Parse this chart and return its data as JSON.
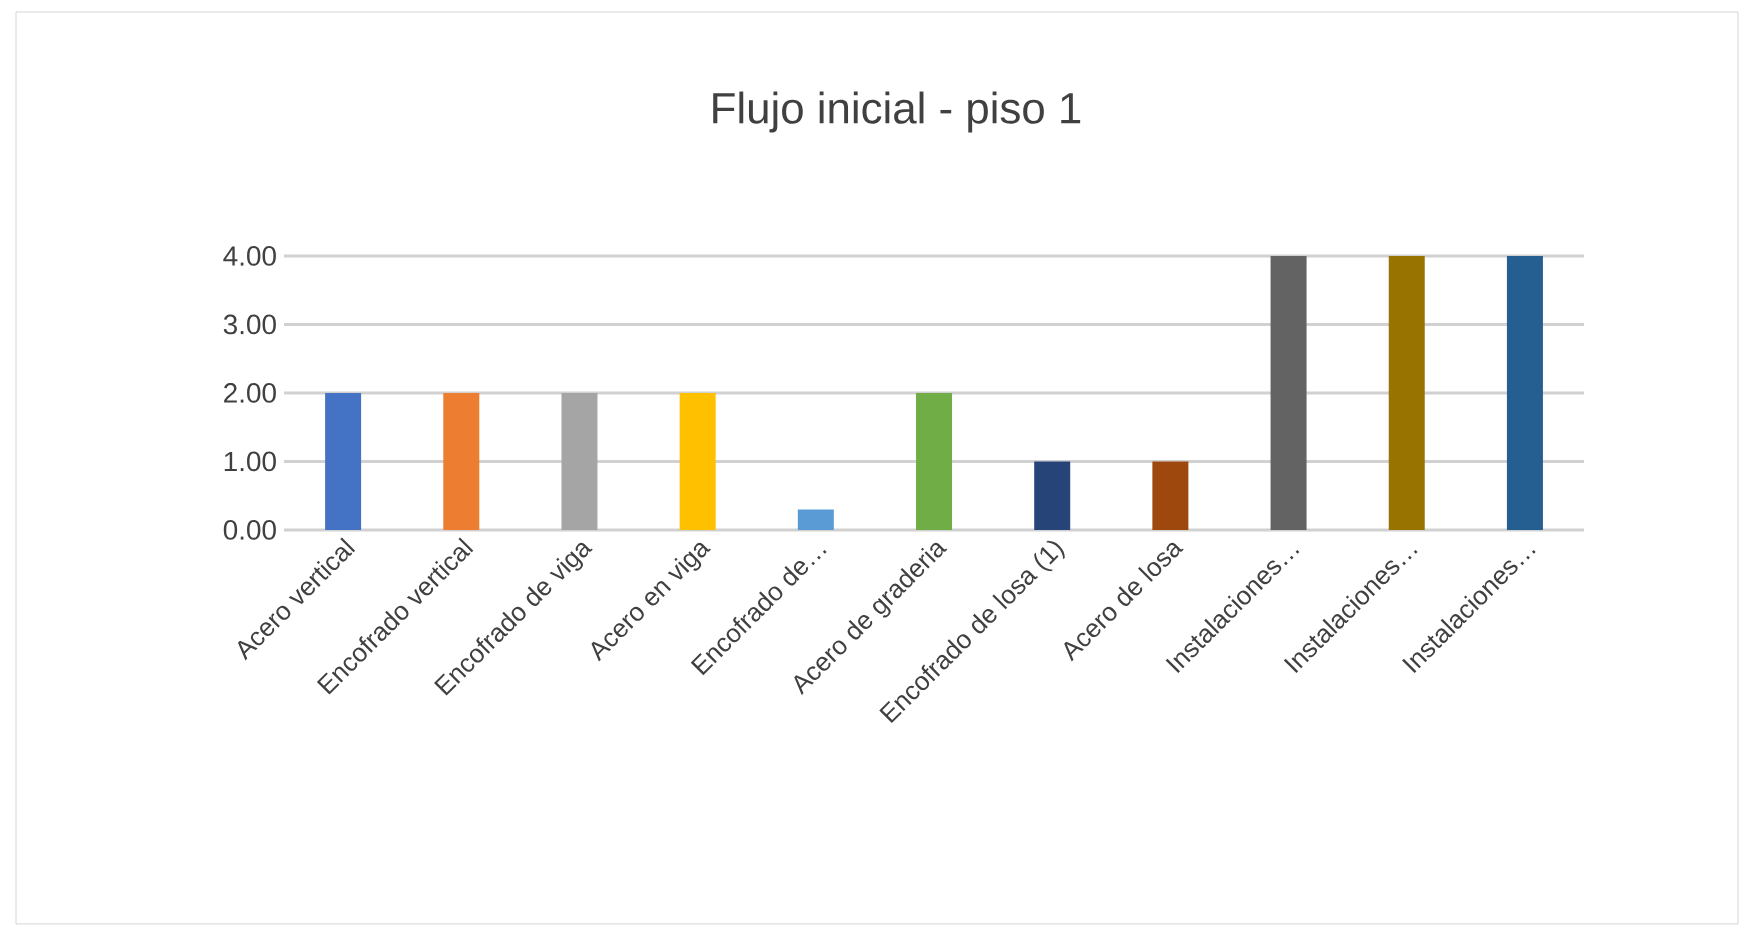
{
  "chart_data": {
    "type": "bar",
    "title": "Flujo inicial - piso 1",
    "categories": [
      "Acero vertical",
      "Encofrado vertical",
      "Encofrado de viga",
      "Acero en viga",
      "Encofrado de…",
      "Acero de graderia",
      "Encofrado de losa (1)",
      "Acero de losa",
      "Instalaciones…",
      "Instalaciones…",
      "Instalaciones…"
    ],
    "values": [
      2,
      2,
      2,
      2,
      0.3,
      2,
      1,
      1,
      4,
      4,
      4
    ],
    "colors": [
      "#4472c4",
      "#ed7d31",
      "#a5a5a5",
      "#ffc000",
      "#5b9bd5",
      "#70ad47",
      "#264478",
      "#9e480e",
      "#636363",
      "#997300",
      "#255e91"
    ],
    "ylim": [
      0,
      4
    ],
    "yticks": [
      {
        "value": 0,
        "label": "0.00"
      },
      {
        "value": 1,
        "label": "1.00"
      },
      {
        "value": 2,
        "label": "2.00"
      },
      {
        "value": 3,
        "label": "3.00"
      },
      {
        "value": 4,
        "label": "4.00"
      }
    ],
    "grid": "y"
  }
}
